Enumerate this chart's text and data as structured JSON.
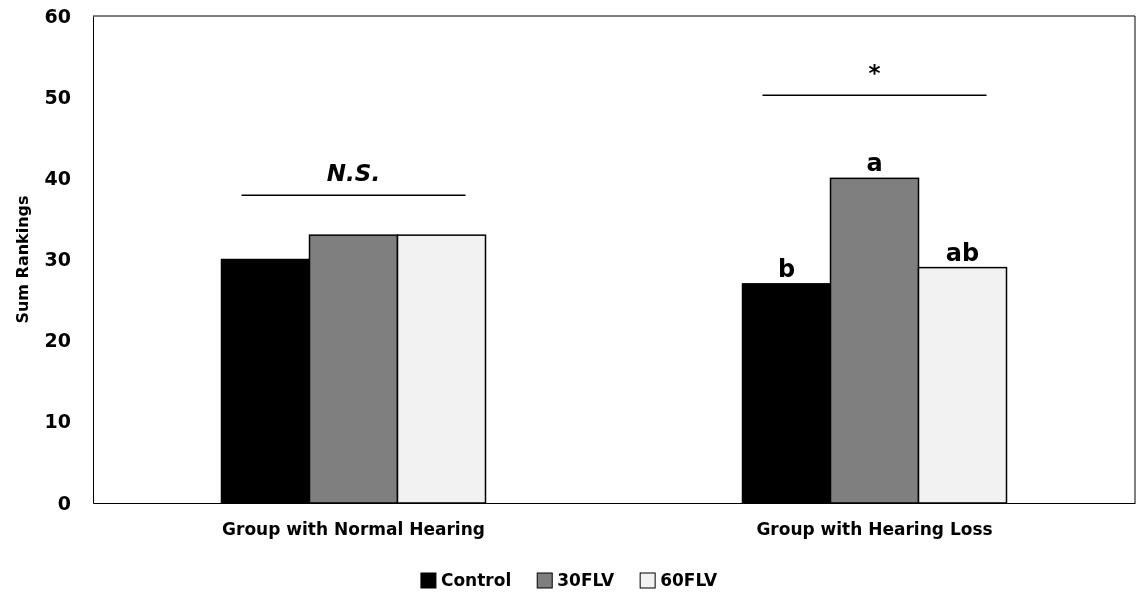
{
  "chart_data": {
    "type": "bar",
    "ylabel": "Sum Rankings",
    "categories": [
      "Group with Normal Hearing",
      "Group with Hearing Loss"
    ],
    "series": [
      {
        "name": "Control",
        "color": "#000000",
        "values": [
          30,
          27
        ],
        "value_labels": [
          null,
          "b"
        ]
      },
      {
        "name": "30FLV",
        "color": "#7f7f7f",
        "values": [
          33,
          40
        ],
        "value_labels": [
          null,
          "a"
        ]
      },
      {
        "name": "60FLV",
        "color": "#f2f2f2",
        "values": [
          33,
          29
        ],
        "value_labels": [
          null,
          "ab"
        ]
      }
    ],
    "ylim": [
      0,
      60
    ],
    "yticks": [
      0,
      10,
      20,
      30,
      40,
      50,
      60
    ],
    "grid": false,
    "legend": "bottom",
    "annotations": [
      "N.S.",
      "*"
    ]
  }
}
